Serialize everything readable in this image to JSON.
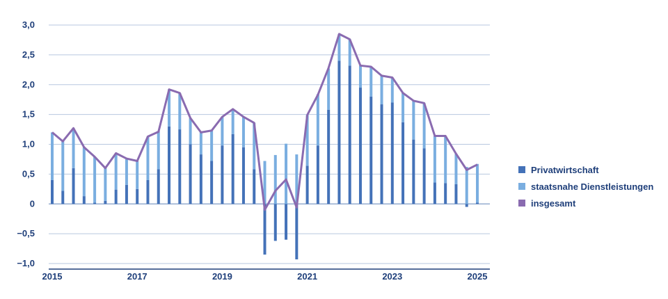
{
  "chart_data": {
    "type": "bar",
    "stacked": true,
    "x_tick_labels": [
      "2015",
      "2017",
      "2019",
      "2021",
      "2023",
      "2025"
    ],
    "y_tick_labels": [
      "3,0",
      "2,5",
      "2,0",
      "1,5",
      "1,0",
      "0,5",
      "0",
      "−0,5",
      "−1,0"
    ],
    "ylim": [
      -1.0,
      3.0
    ],
    "grid": true,
    "legend_position": "right",
    "series": [
      {
        "name": "Privatwirtschaft",
        "color": "#4472b8",
        "values": [
          0.4,
          0.22,
          0.6,
          0.13,
          0.02,
          0.05,
          0.24,
          0.32,
          0.25,
          0.4,
          0.58,
          1.3,
          1.25,
          1.0,
          0.83,
          0.72,
          0.98,
          1.17,
          0.95,
          0.58,
          -0.85,
          -0.62,
          -0.6,
          -0.93,
          0.64,
          0.98,
          1.58,
          2.4,
          2.32,
          1.95,
          1.8,
          1.67,
          1.7,
          1.37,
          1.08,
          0.93,
          0.36,
          0.35,
          0.33,
          -0.05,
          0.02
        ]
      },
      {
        "name": "staatsnahe Dienstleistungen",
        "color": "#7aaee0",
        "values": [
          0.8,
          0.85,
          0.67,
          0.82,
          0.77,
          0.55,
          0.6,
          0.43,
          0.47,
          0.73,
          0.64,
          0.62,
          0.61,
          0.44,
          0.38,
          0.51,
          0.48,
          0.42,
          0.51,
          0.78,
          0.72,
          0.82,
          1.01,
          0.83,
          0.85,
          0.86,
          0.69,
          0.45,
          0.44,
          0.37,
          0.5,
          0.48,
          0.42,
          0.49,
          0.65,
          0.76,
          0.78,
          0.79,
          0.51,
          0.62,
          0.65
        ]
      },
      {
        "name": "insgesamt",
        "type": "line",
        "color": "#8a6bb0",
        "values": [
          1.2,
          1.05,
          1.27,
          0.95,
          0.79,
          0.6,
          0.85,
          0.76,
          0.72,
          1.13,
          1.21,
          1.92,
          1.86,
          1.44,
          1.2,
          1.23,
          1.46,
          1.59,
          1.46,
          1.36,
          -0.1,
          0.22,
          0.41,
          -0.06,
          1.49,
          1.83,
          2.28,
          2.85,
          2.76,
          2.32,
          2.3,
          2.15,
          2.12,
          1.86,
          1.73,
          1.69,
          1.14,
          1.14,
          0.84,
          0.57,
          0.66
        ]
      }
    ]
  }
}
